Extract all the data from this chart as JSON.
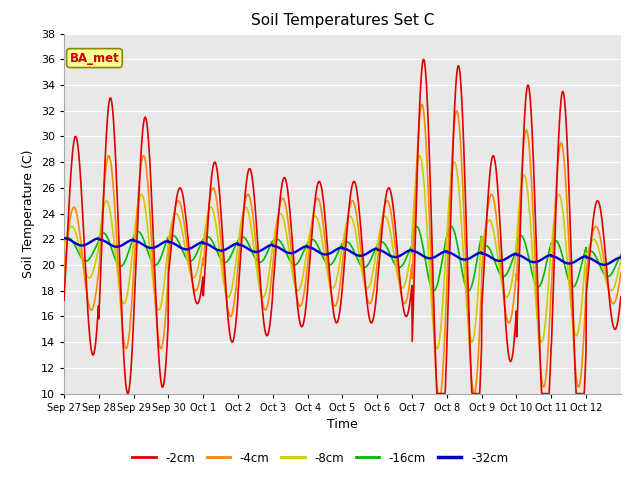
{
  "title": "Soil Temperatures Set C",
  "xlabel": "Time",
  "ylabel": "Soil Temperature (C)",
  "ylim": [
    10,
    38
  ],
  "plot_bg_color": "#e8e8e8",
  "fig_bg_color": "#ffffff",
  "grid_color": "#ffffff",
  "colors": {
    "-2cm": "#dd0000",
    "-4cm": "#ff8800",
    "-8cm": "#cccc00",
    "-16cm": "#00bb00",
    "-32cm": "#0000cc"
  },
  "legend_label": "BA_met",
  "x_tick_labels": [
    "Sep 27",
    "Sep 28",
    "Sep 29",
    "Sep 30",
    "Oct 1",
    "Oct 2",
    "Oct 3",
    "Oct 4",
    "Oct 5",
    "Oct 6",
    "Oct 7",
    "Oct 8",
    "Oct 9",
    "Oct 10",
    "Oct 11",
    "Oct 12"
  ],
  "num_days": 16,
  "line_width": 1.2
}
